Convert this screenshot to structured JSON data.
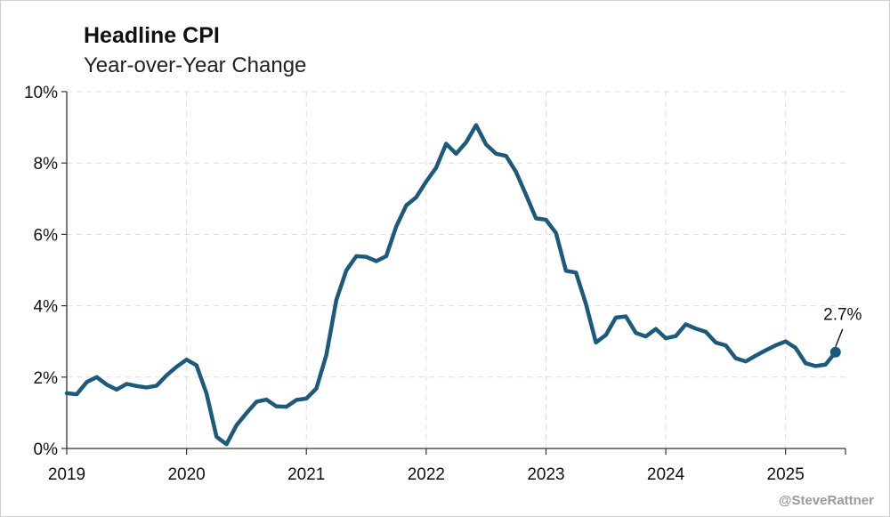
{
  "header": {
    "title": "Headline CPI",
    "subtitle": "Year-over-Year Change"
  },
  "credit": "@SteveRattner",
  "colors": {
    "line": "#1b5a7a",
    "grid": "#dddddd",
    "axis": "#333333"
  },
  "chart_data": {
    "type": "line",
    "title": "Headline CPI",
    "subtitle": "Year-over-Year Change",
    "xlabel": "",
    "ylabel": "",
    "x_ticks": [
      "2019",
      "2020",
      "2021",
      "2022",
      "2023",
      "2024",
      "2025"
    ],
    "y_ticks": [
      "0%",
      "2%",
      "4%",
      "6%",
      "8%",
      "10%"
    ],
    "ylim": [
      0,
      10
    ],
    "xlim": [
      "2019-01",
      "2025-07"
    ],
    "grid": "dashed",
    "annotation": {
      "text": "2.7%",
      "x": "2025-06",
      "y": 2.7
    },
    "series": [
      {
        "x": [
          "2019-01",
          "2019-02",
          "2019-03",
          "2019-04",
          "2019-05",
          "2019-06",
          "2019-07",
          "2019-08",
          "2019-09",
          "2019-10",
          "2019-11",
          "2019-12",
          "2020-01",
          "2020-02",
          "2020-03",
          "2020-04",
          "2020-05",
          "2020-06",
          "2020-07",
          "2020-08",
          "2020-09",
          "2020-10",
          "2020-11",
          "2020-12",
          "2021-01",
          "2021-02",
          "2021-03",
          "2021-04",
          "2021-05",
          "2021-06",
          "2021-07",
          "2021-08",
          "2021-09",
          "2021-10",
          "2021-11",
          "2021-12",
          "2022-01",
          "2022-02",
          "2022-03",
          "2022-04",
          "2022-05",
          "2022-06",
          "2022-07",
          "2022-08",
          "2022-09",
          "2022-10",
          "2022-11",
          "2022-12",
          "2023-01",
          "2023-02",
          "2023-03",
          "2023-04",
          "2023-05",
          "2023-06",
          "2023-07",
          "2023-08",
          "2023-09",
          "2023-10",
          "2023-11",
          "2023-12",
          "2024-01",
          "2024-02",
          "2024-03",
          "2024-04",
          "2024-05",
          "2024-06",
          "2024-07",
          "2024-08",
          "2024-09",
          "2024-10",
          "2024-11",
          "2024-12",
          "2025-01",
          "2025-02",
          "2025-03",
          "2025-04",
          "2025-05",
          "2025-06"
        ],
        "values": [
          1.55,
          1.52,
          1.86,
          2.0,
          1.79,
          1.65,
          1.81,
          1.75,
          1.71,
          1.76,
          2.05,
          2.29,
          2.49,
          2.33,
          1.54,
          0.33,
          0.12,
          0.65,
          0.99,
          1.31,
          1.37,
          1.18,
          1.17,
          1.36,
          1.4,
          1.68,
          2.62,
          4.16,
          4.99,
          5.39,
          5.37,
          5.25,
          5.39,
          6.22,
          6.81,
          7.04,
          7.48,
          7.87,
          8.54,
          8.26,
          8.58,
          9.06,
          8.52,
          8.26,
          8.2,
          7.75,
          7.11,
          6.45,
          6.41,
          6.04,
          4.98,
          4.93,
          4.05,
          2.97,
          3.18,
          3.67,
          3.7,
          3.24,
          3.14,
          3.35,
          3.09,
          3.15,
          3.48,
          3.36,
          3.27,
          2.97,
          2.89,
          2.53,
          2.44,
          2.6,
          2.75,
          2.89,
          3.0,
          2.82,
          2.39,
          2.31,
          2.35,
          2.7
        ]
      }
    ]
  }
}
